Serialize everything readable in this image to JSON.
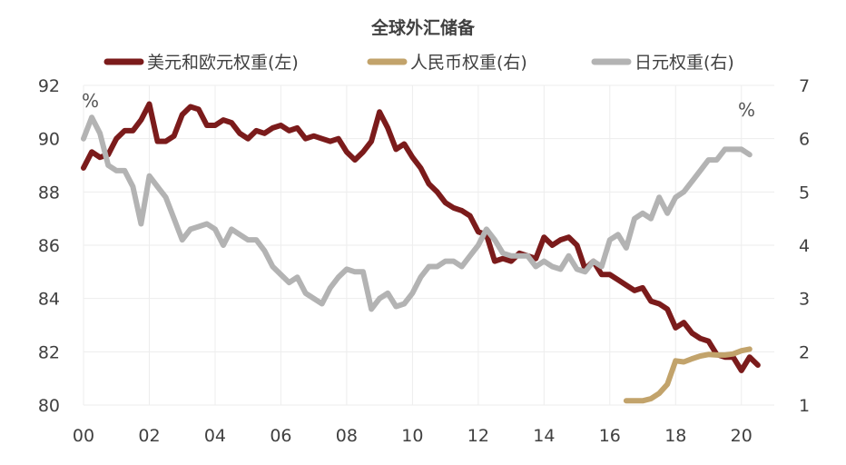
{
  "chart_data": {
    "type": "line",
    "title": "全球外汇储备",
    "left_unit": "%",
    "right_unit": "%",
    "x_axis": {
      "min": 2000,
      "max": 2021,
      "ticks": [
        2000,
        2002,
        2004,
        2006,
        2008,
        2010,
        2012,
        2014,
        2016,
        2018,
        2020
      ],
      "tick_labels": [
        "00",
        "02",
        "04",
        "06",
        "08",
        "10",
        "12",
        "14",
        "16",
        "18",
        "20"
      ]
    },
    "y_left": {
      "min": 80,
      "max": 92,
      "ticks": [
        80,
        82,
        84,
        86,
        88,
        90,
        92
      ],
      "tick_labels": [
        "80",
        "82",
        "84",
        "86",
        "88",
        "90",
        "92"
      ]
    },
    "y_right": {
      "min": 1,
      "max": 7,
      "ticks": [
        1,
        2,
        3,
        4,
        5,
        6,
        7
      ],
      "tick_labels": [
        "1",
        "2",
        "3",
        "4",
        "5",
        "6",
        "7"
      ]
    },
    "grid": true,
    "legend_position": "top",
    "series": [
      {
        "name": "美元和欧元权重(左)",
        "axis": "left",
        "color": "#7b1b1b",
        "points": [
          [
            2000.0,
            88.9
          ],
          [
            2000.25,
            89.5
          ],
          [
            2000.5,
            89.3
          ],
          [
            2000.75,
            89.4
          ],
          [
            2001.0,
            90.0
          ],
          [
            2001.25,
            90.3
          ],
          [
            2001.5,
            90.3
          ],
          [
            2001.75,
            90.7
          ],
          [
            2002.0,
            91.3
          ],
          [
            2002.25,
            89.9
          ],
          [
            2002.5,
            89.9
          ],
          [
            2002.75,
            90.1
          ],
          [
            2003.0,
            90.9
          ],
          [
            2003.25,
            91.2
          ],
          [
            2003.5,
            91.1
          ],
          [
            2003.75,
            90.5
          ],
          [
            2004.0,
            90.5
          ],
          [
            2004.25,
            90.7
          ],
          [
            2004.5,
            90.6
          ],
          [
            2004.75,
            90.2
          ],
          [
            2005.0,
            90.0
          ],
          [
            2005.25,
            90.3
          ],
          [
            2005.5,
            90.2
          ],
          [
            2005.75,
            90.4
          ],
          [
            2006.0,
            90.5
          ],
          [
            2006.25,
            90.3
          ],
          [
            2006.5,
            90.4
          ],
          [
            2006.75,
            90.0
          ],
          [
            2007.0,
            90.1
          ],
          [
            2007.25,
            90.0
          ],
          [
            2007.5,
            89.9
          ],
          [
            2007.75,
            90.0
          ],
          [
            2008.0,
            89.5
          ],
          [
            2008.25,
            89.2
          ],
          [
            2008.5,
            89.5
          ],
          [
            2008.75,
            89.9
          ],
          [
            2009.0,
            91.0
          ],
          [
            2009.25,
            90.4
          ],
          [
            2009.5,
            89.6
          ],
          [
            2009.75,
            89.8
          ],
          [
            2010.0,
            89.3
          ],
          [
            2010.25,
            88.9
          ],
          [
            2010.5,
            88.3
          ],
          [
            2010.75,
            88.0
          ],
          [
            2011.0,
            87.6
          ],
          [
            2011.25,
            87.4
          ],
          [
            2011.5,
            87.3
          ],
          [
            2011.75,
            87.1
          ],
          [
            2012.0,
            86.5
          ],
          [
            2012.25,
            86.4
          ],
          [
            2012.5,
            85.4
          ],
          [
            2012.75,
            85.5
          ],
          [
            2013.0,
            85.4
          ],
          [
            2013.25,
            85.7
          ],
          [
            2013.5,
            85.6
          ],
          [
            2013.75,
            85.5
          ],
          [
            2014.0,
            86.3
          ],
          [
            2014.25,
            86.0
          ],
          [
            2014.5,
            86.2
          ],
          [
            2014.75,
            86.3
          ],
          [
            2015.0,
            86.0
          ],
          [
            2015.25,
            85.1
          ],
          [
            2015.5,
            85.4
          ],
          [
            2015.75,
            84.9
          ],
          [
            2016.0,
            84.9
          ],
          [
            2016.25,
            84.7
          ],
          [
            2016.5,
            84.5
          ],
          [
            2016.75,
            84.3
          ],
          [
            2017.0,
            84.4
          ],
          [
            2017.25,
            83.9
          ],
          [
            2017.5,
            83.8
          ],
          [
            2017.75,
            83.6
          ],
          [
            2018.0,
            82.9
          ],
          [
            2018.25,
            83.1
          ],
          [
            2018.5,
            82.7
          ],
          [
            2018.75,
            82.5
          ],
          [
            2019.0,
            82.4
          ],
          [
            2019.25,
            81.9
          ],
          [
            2019.5,
            81.8
          ],
          [
            2019.75,
            81.8
          ],
          [
            2020.0,
            81.3
          ],
          [
            2020.25,
            81.8
          ],
          [
            2020.5,
            81.5
          ]
        ]
      },
      {
        "name": "人民币权重(右)",
        "axis": "right",
        "color": "#c2a36b",
        "points": [
          [
            2016.5,
            1.08
          ],
          [
            2016.75,
            1.08
          ],
          [
            2017.0,
            1.08
          ],
          [
            2017.25,
            1.12
          ],
          [
            2017.5,
            1.22
          ],
          [
            2017.75,
            1.39
          ],
          [
            2018.0,
            1.83
          ],
          [
            2018.25,
            1.81
          ],
          [
            2018.5,
            1.87
          ],
          [
            2018.75,
            1.92
          ],
          [
            2019.0,
            1.95
          ],
          [
            2019.25,
            1.94
          ],
          [
            2019.5,
            1.94
          ],
          [
            2019.75,
            1.96
          ],
          [
            2020.0,
            2.02
          ],
          [
            2020.25,
            2.05
          ]
        ]
      },
      {
        "name": "日元权重(右)",
        "axis": "right",
        "color": "#b3b3b3",
        "points": [
          [
            2000.0,
            6.0
          ],
          [
            2000.25,
            6.4
          ],
          [
            2000.5,
            6.1
          ],
          [
            2000.75,
            5.5
          ],
          [
            2001.0,
            5.4
          ],
          [
            2001.25,
            5.4
          ],
          [
            2001.5,
            5.1
          ],
          [
            2001.75,
            4.4
          ],
          [
            2002.0,
            5.3
          ],
          [
            2002.25,
            5.1
          ],
          [
            2002.5,
            4.9
          ],
          [
            2002.75,
            4.5
          ],
          [
            2003.0,
            4.1
          ],
          [
            2003.25,
            4.3
          ],
          [
            2003.5,
            4.35
          ],
          [
            2003.75,
            4.4
          ],
          [
            2004.0,
            4.3
          ],
          [
            2004.25,
            4.0
          ],
          [
            2004.5,
            4.3
          ],
          [
            2004.75,
            4.2
          ],
          [
            2005.0,
            4.1
          ],
          [
            2005.25,
            4.1
          ],
          [
            2005.5,
            3.9
          ],
          [
            2005.75,
            3.6
          ],
          [
            2006.0,
            3.45
          ],
          [
            2006.25,
            3.3
          ],
          [
            2006.5,
            3.4
          ],
          [
            2006.75,
            3.1
          ],
          [
            2007.0,
            3.0
          ],
          [
            2007.25,
            2.9
          ],
          [
            2007.5,
            3.2
          ],
          [
            2007.75,
            3.4
          ],
          [
            2008.0,
            3.55
          ],
          [
            2008.25,
            3.5
          ],
          [
            2008.5,
            3.5
          ],
          [
            2008.75,
            2.8
          ],
          [
            2009.0,
            3.0
          ],
          [
            2009.25,
            3.1
          ],
          [
            2009.5,
            2.85
          ],
          [
            2009.75,
            2.9
          ],
          [
            2010.0,
            3.1
          ],
          [
            2010.25,
            3.4
          ],
          [
            2010.5,
            3.6
          ],
          [
            2010.75,
            3.6
          ],
          [
            2011.0,
            3.7
          ],
          [
            2011.25,
            3.7
          ],
          [
            2011.5,
            3.6
          ],
          [
            2011.75,
            3.8
          ],
          [
            2012.0,
            4.0
          ],
          [
            2012.25,
            4.3
          ],
          [
            2012.5,
            4.1
          ],
          [
            2012.75,
            3.85
          ],
          [
            2013.0,
            3.8
          ],
          [
            2013.25,
            3.8
          ],
          [
            2013.5,
            3.8
          ],
          [
            2013.75,
            3.6
          ],
          [
            2014.0,
            3.7
          ],
          [
            2014.25,
            3.6
          ],
          [
            2014.5,
            3.55
          ],
          [
            2014.75,
            3.8
          ],
          [
            2015.0,
            3.55
          ],
          [
            2015.25,
            3.5
          ],
          [
            2015.5,
            3.7
          ],
          [
            2015.75,
            3.6
          ],
          [
            2016.0,
            4.1
          ],
          [
            2016.25,
            4.2
          ],
          [
            2016.5,
            3.95
          ],
          [
            2016.75,
            4.5
          ],
          [
            2017.0,
            4.6
          ],
          [
            2017.25,
            4.5
          ],
          [
            2017.5,
            4.9
          ],
          [
            2017.75,
            4.6
          ],
          [
            2018.0,
            4.9
          ],
          [
            2018.25,
            5.0
          ],
          [
            2018.5,
            5.2
          ],
          [
            2018.75,
            5.4
          ],
          [
            2019.0,
            5.6
          ],
          [
            2019.25,
            5.6
          ],
          [
            2019.5,
            5.8
          ],
          [
            2019.75,
            5.8
          ],
          [
            2020.0,
            5.8
          ],
          [
            2020.25,
            5.7
          ]
        ]
      }
    ]
  }
}
